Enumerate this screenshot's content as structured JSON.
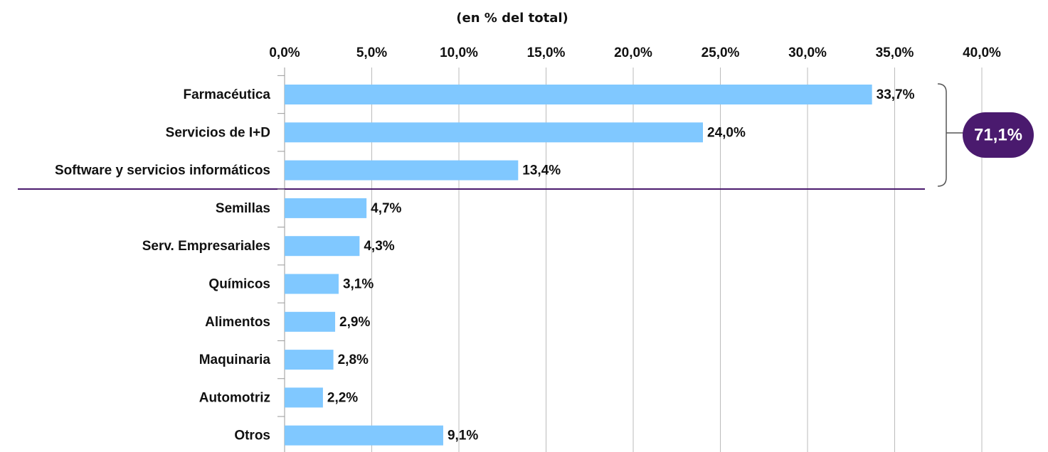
{
  "chart_data": {
    "type": "hbar",
    "subtitle": "(en % del total)",
    "categories": [
      "Farmacéutica",
      "Servicios de I+D",
      "Software y servicios informáticos",
      "Semillas",
      "Serv. Empresariales",
      "Químicos",
      "Alimentos",
      "Maquinaria",
      "Automotriz",
      "Otros"
    ],
    "values": [
      33.7,
      24.0,
      13.4,
      4.7,
      4.3,
      3.1,
      2.9,
      2.8,
      2.2,
      9.1
    ],
    "value_labels": [
      "33,7%",
      "24,0%",
      "13,4%",
      "4,7%",
      "4,3%",
      "3,1%",
      "2,9%",
      "2,8%",
      "2,2%",
      "9,1%"
    ],
    "color": "#80c8ff",
    "xlim": [
      0,
      40
    ],
    "xticks": [
      {
        "value": 0,
        "label": "0,0%"
      },
      {
        "value": 5,
        "label": "5,0%"
      },
      {
        "value": 10,
        "label": "10,0%"
      },
      {
        "value": 15,
        "label": "15,0%"
      },
      {
        "value": 20,
        "label": "20,0%"
      },
      {
        "value": 25,
        "label": "25,0%"
      },
      {
        "value": 30,
        "label": "30,0%"
      },
      {
        "value": 35,
        "label": "35,0%"
      },
      {
        "value": 40,
        "label": "40,0%"
      }
    ],
    "grid": true,
    "annotation": "71,1%"
  }
}
